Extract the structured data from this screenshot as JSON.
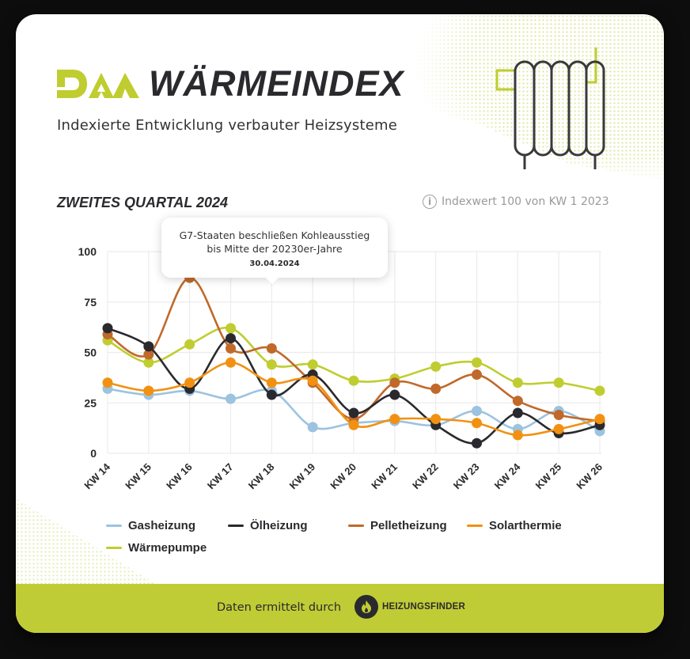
{
  "header": {
    "logo_text": "DAA",
    "title": "WÄRMEINDEX",
    "subtitle": "Indexierte Entwicklung verbauter Heizsysteme",
    "illustration": "radiator-icon"
  },
  "section": {
    "title": "ZWEITES QUARTAL 2024",
    "note": "Indexwert 100 von KW 1 2023",
    "note_icon": "info-icon"
  },
  "tooltip": {
    "line1": "G7-Staaten beschließen Kohleausstieg",
    "line2": "bis Mitte der 20230er-Jahre",
    "date": "30.04.2024"
  },
  "colors": {
    "accent": "#c0cc35",
    "dark": "#2a2a2e",
    "gas": "#9cc3df",
    "oel": "#2a2a2e",
    "pellet": "#c0692a",
    "solar": "#f29111",
    "waerme": "#bfcd30"
  },
  "chart_data": {
    "type": "line",
    "title": "ZWEITES QUARTAL 2024",
    "subtitle": "Indexwert 100 von KW 1 2023",
    "xlabel": "",
    "ylabel": "",
    "ylim": [
      0,
      100
    ],
    "yticks": [
      0,
      25,
      50,
      75,
      100
    ],
    "grid": true,
    "legend_position": "bottom",
    "categories": [
      "KW 14",
      "KW 15",
      "KW 16",
      "KW 17",
      "KW 18",
      "KW 19",
      "KW 20",
      "KW 21",
      "KW 22",
      "KW 23",
      "KW 24",
      "KW 25",
      "KW 26"
    ],
    "series": [
      {
        "name": "Gasheizung",
        "color": "#9cc3df",
        "values": [
          32,
          29,
          31,
          27,
          31,
          13,
          15,
          16,
          14,
          21,
          12,
          21,
          11
        ]
      },
      {
        "name": "Ölheizung",
        "color": "#2a2a2e",
        "values": [
          62,
          53,
          32,
          57,
          29,
          39,
          20,
          29,
          14,
          5,
          20,
          10,
          14
        ]
      },
      {
        "name": "Pelletheizung",
        "color": "#c0692a",
        "values": [
          59,
          49,
          87,
          52,
          52,
          35,
          17,
          35,
          32,
          39,
          26,
          19,
          16
        ]
      },
      {
        "name": "Solarthermie",
        "color": "#f29111",
        "values": [
          35,
          31,
          35,
          45,
          35,
          36,
          14,
          17,
          17,
          15,
          9,
          12,
          17
        ]
      },
      {
        "name": "Wärmepumpe",
        "color": "#bfcd30",
        "values": [
          56,
          45,
          54,
          62,
          44,
          44,
          36,
          37,
          43,
          45,
          35,
          35,
          31
        ]
      }
    ],
    "annotation": {
      "category": "KW 18",
      "text": "G7-Staaten beschließen Kohleausstieg bis Mitte der 20230er-Jahre",
      "date": "30.04.2024"
    }
  },
  "legend": [
    "Gasheizung",
    "Ölheizung",
    "Pelletheizung",
    "Solarthermie",
    "Wärmepumpe"
  ],
  "footer": {
    "text": "Daten ermittelt durch",
    "partner": "HEIZUNGSFINDER",
    "partner_icon": "flame-icon"
  }
}
